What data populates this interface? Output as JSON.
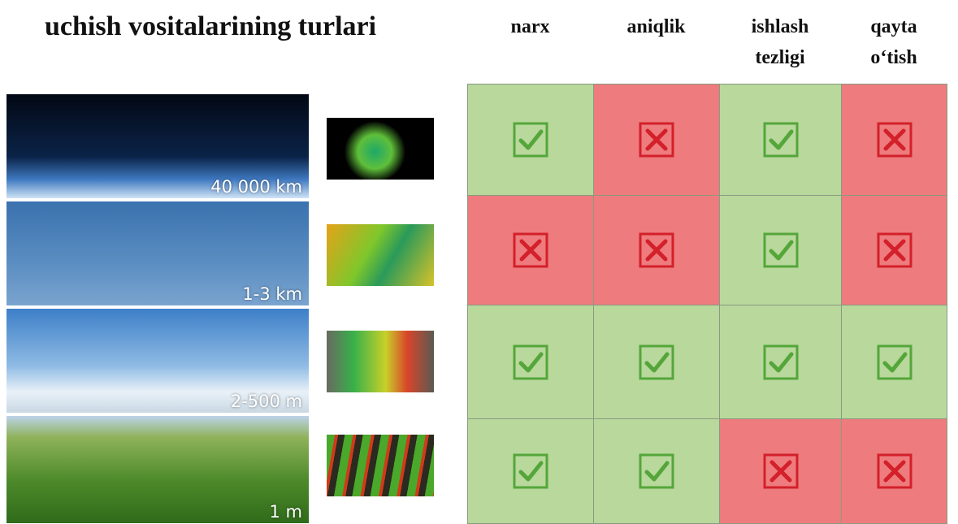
{
  "title": "uchish vositalarining turlari",
  "columns": [
    [
      "narx"
    ],
    [
      "aniqlik"
    ],
    [
      "ishlash",
      "tezligi"
    ],
    [
      "qayta",
      "o‘tish"
    ]
  ],
  "rows": [
    {
      "altitude": "40 000 km",
      "marks": [
        true,
        false,
        true,
        false
      ]
    },
    {
      "altitude": "1-3 km",
      "marks": [
        false,
        false,
        true,
        false
      ]
    },
    {
      "altitude": "2-500 m",
      "marks": [
        true,
        true,
        true,
        true
      ]
    },
    {
      "altitude": "1 m",
      "marks": [
        true,
        true,
        false,
        false
      ]
    }
  ]
}
